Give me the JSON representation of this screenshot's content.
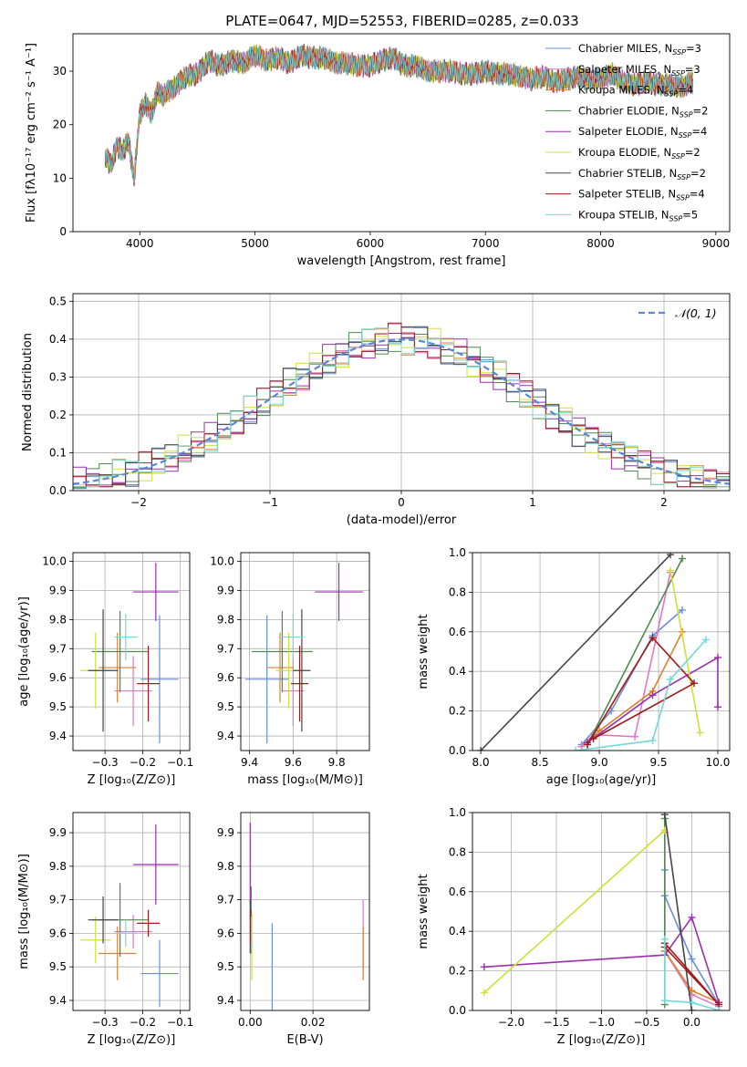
{
  "figure_title": "PLATE=0647, MJD=52553, FIBERID=0285, z=0.033",
  "colors": {
    "Chabrier MILES": "#6b8ed6",
    "Salpeter MILES": "#e377c2",
    "Kroupa MILES": "#e0802c",
    "Chabrier ELODIE": "#4f8a4f",
    "Salpeter ELODIE": "#9a2fb0",
    "Kroupa ELODIE": "#cfe03a",
    "Chabrier STELIB": "#454545",
    "Salpeter STELIB": "#a01a1a",
    "Kroupa STELIB": "#72d8d8"
  },
  "chart_data": [
    {
      "id": "spectrum",
      "type": "line",
      "xlabel": "wavelength [Angstrom, rest frame]",
      "ylabel": "Flux [fλ10⁻¹⁷ erg cm⁻² s⁻¹ A⁻¹]",
      "xlim": [
        3420,
        9120
      ],
      "ylim": [
        0,
        37
      ],
      "xticks": [
        4000,
        5000,
        6000,
        7000,
        8000,
        9000
      ],
      "yticks": [
        0,
        10,
        20,
        30
      ],
      "legend_position": "top-right",
      "legend": [
        {
          "model": "Chabrier MILES",
          "prefix": "Chabrier MILES, N",
          "sub": "SSP",
          "suffix": "=3"
        },
        {
          "model": "Salpeter MILES",
          "prefix": "Salpeter MILES, N",
          "sub": "SSP",
          "suffix": "=3"
        },
        {
          "model": "Kroupa MILES",
          "prefix": "Kroupa MILES, N",
          "sub": "SSP",
          "suffix": "=4"
        },
        {
          "model": "Chabrier ELODIE",
          "prefix": "Chabrier ELODIE, N",
          "sub": "SSP",
          "suffix": "=2"
        },
        {
          "model": "Salpeter ELODIE",
          "prefix": "Salpeter ELODIE, N",
          "sub": "SSP",
          "suffix": "=4"
        },
        {
          "model": "Kroupa ELODIE",
          "prefix": "Kroupa ELODIE, N",
          "sub": "SSP",
          "suffix": "=2"
        },
        {
          "model": "Chabrier STELIB",
          "prefix": "Chabrier STELIB, N",
          "sub": "SSP",
          "suffix": "=2"
        },
        {
          "model": "Salpeter STELIB",
          "prefix": "Salpeter STELIB, N",
          "sub": "SSP",
          "suffix": "=4"
        },
        {
          "model": "Kroupa STELIB",
          "prefix": "Kroupa STELIB, N",
          "sub": "SSP",
          "suffix": "=5"
        }
      ],
      "wavelength": [
        3700,
        3750,
        3800,
        3850,
        3900,
        3950,
        4000,
        4050,
        4100,
        4150,
        4200,
        4300,
        4400,
        4500,
        4600,
        4700,
        4800,
        4900,
        5000,
        5100,
        5200,
        5300,
        5400,
        5500,
        5600,
        5700,
        5800,
        5900,
        6000,
        6100,
        6200,
        6300,
        6400,
        6500,
        6600,
        6700,
        6800,
        6900,
        7000,
        7100,
        7200,
        7300,
        7400,
        7500,
        7600,
        7700,
        7800,
        7900,
        8000,
        8100,
        8200,
        8300,
        8400,
        8500,
        8600,
        8700,
        8800
      ],
      "flux": [
        14,
        12.5,
        16,
        15,
        17,
        10,
        22,
        24,
        22,
        26,
        25.5,
        27,
        29,
        29.5,
        32,
        31,
        32,
        31.5,
        33,
        32,
        32.5,
        31.5,
        33,
        32.5,
        32.5,
        31.5,
        31.5,
        31,
        31,
        32,
        32.5,
        31,
        31,
        30,
        30,
        30,
        29.5,
        29.5,
        30,
        29.5,
        29.5,
        29,
        28.5,
        29,
        28,
        28.5,
        29,
        28.5,
        28.5,
        29.5,
        28,
        27.5,
        28,
        27.5,
        27.5,
        27,
        28
      ]
    },
    {
      "id": "residual-histogram",
      "type": "step",
      "xlabel": "(data-model)/error",
      "ylabel": "Normed distribution",
      "xlim": [
        -2.5,
        2.5
      ],
      "ylim": [
        0,
        0.52
      ],
      "xticks": [
        -2,
        -1,
        0,
        1,
        2
      ],
      "yticks": [
        0.0,
        0.1,
        0.2,
        0.3,
        0.4,
        0.5
      ],
      "grid": true,
      "reference_curve": {
        "label": "𝒩(0, 1)",
        "mean": 0,
        "sigma": 1
      }
    },
    {
      "id": "age-vs-Z",
      "type": "errorbar",
      "xlabel": "Z [log₁₀(Z/Z⊙)]",
      "ylabel": "age  [log₁₀(age/yr)]",
      "xlim": [
        -0.385,
        -0.075
      ],
      "ylim": [
        9.35,
        10.03
      ],
      "xticks": [
        -0.3,
        -0.2,
        -0.1
      ],
      "yticks": [
        9.4,
        9.5,
        9.6,
        9.7,
        9.8,
        9.9,
        10.0
      ],
      "grid": true,
      "points": [
        {
          "model": "Chabrier MILES",
          "x": -0.155,
          "xerr": 0.05,
          "y": 9.595,
          "yerr": 0.22
        },
        {
          "model": "Salpeter MILES",
          "x": -0.225,
          "xerr": 0.05,
          "y": 9.555,
          "yerr": 0.12
        },
        {
          "model": "Kroupa MILES",
          "x": -0.267,
          "xerr": 0.05,
          "y": 9.635,
          "yerr": 0.12
        },
        {
          "model": "Chabrier ELODIE",
          "x": -0.26,
          "xerr": 0.075,
          "y": 9.69,
          "yerr": 0.14
        },
        {
          "model": "Salpeter ELODIE",
          "x": -0.165,
          "xerr": 0.06,
          "y": 9.895,
          "yerr": 0.1
        },
        {
          "model": "Kroupa ELODIE",
          "x": -0.325,
          "xerr": 0.04,
          "y": 9.625,
          "yerr": 0.13
        },
        {
          "model": "Chabrier STELIB",
          "x": -0.305,
          "xerr": 0.04,
          "y": 9.625,
          "yerr": 0.21
        },
        {
          "model": "Salpeter STELIB",
          "x": -0.185,
          "xerr": 0.03,
          "y": 9.58,
          "yerr": 0.13
        },
        {
          "model": "Kroupa STELIB",
          "x": -0.245,
          "xerr": 0.03,
          "y": 9.74,
          "yerr": 0.08
        }
      ]
    },
    {
      "id": "age-vs-mass",
      "type": "errorbar",
      "xlabel": "mass [log₁₀(M/M⊙)]",
      "ylabel": "",
      "xlim": [
        9.36,
        9.95
      ],
      "ylim": [
        9.35,
        10.03
      ],
      "xticks": [
        9.4,
        9.6,
        9.8
      ],
      "yticks": [
        9.4,
        9.5,
        9.6,
        9.7,
        9.8,
        9.9,
        10.0
      ],
      "grid": true,
      "points": [
        {
          "model": "Chabrier MILES",
          "x": 9.48,
          "xerr": 0.1,
          "y": 9.595,
          "yerr": 0.22
        },
        {
          "model": "Salpeter MILES",
          "x": 9.6,
          "xerr": 0.05,
          "y": 9.555,
          "yerr": 0.12
        },
        {
          "model": "Kroupa MILES",
          "x": 9.54,
          "xerr": 0.06,
          "y": 9.635,
          "yerr": 0.12
        },
        {
          "model": "Chabrier ELODIE",
          "x": 9.55,
          "xerr": 0.14,
          "y": 9.69,
          "yerr": 0.14
        },
        {
          "model": "Salpeter ELODIE",
          "x": 9.81,
          "xerr": 0.11,
          "y": 9.895,
          "yerr": 0.1
        },
        {
          "model": "Kroupa ELODIE",
          "x": 9.58,
          "xerr": 0.06,
          "y": 9.625,
          "yerr": 0.13
        },
        {
          "model": "Chabrier STELIB",
          "x": 9.64,
          "xerr": 0.04,
          "y": 9.625,
          "yerr": 0.21
        },
        {
          "model": "Salpeter STELIB",
          "x": 9.63,
          "xerr": 0.04,
          "y": 9.58,
          "yerr": 0.13
        },
        {
          "model": "Kroupa STELIB",
          "x": 9.6,
          "xerr": 0.05,
          "y": 9.74,
          "yerr": 0.08
        }
      ]
    },
    {
      "id": "mass-vs-Z",
      "type": "errorbar",
      "xlabel": "Z [log₁₀(Z/Z⊙)]",
      "ylabel": "mass [log₁₀(M/M⊙)]",
      "xlim": [
        -0.385,
        -0.075
      ],
      "ylim": [
        9.37,
        9.96
      ],
      "xticks": [
        -0.3,
        -0.2,
        -0.1
      ],
      "yticks": [
        9.4,
        9.5,
        9.6,
        9.7,
        9.8,
        9.9
      ],
      "grid": true,
      "points": [
        {
          "model": "Chabrier MILES",
          "x": -0.155,
          "xerr": 0.05,
          "y": 9.48,
          "yerr": 0.1
        },
        {
          "model": "Salpeter MILES",
          "x": -0.225,
          "xerr": 0.05,
          "y": 9.605,
          "yerr": 0.05
        },
        {
          "model": "Kroupa MILES",
          "x": -0.267,
          "xerr": 0.05,
          "y": 9.54,
          "yerr": 0.08
        },
        {
          "model": "Chabrier ELODIE",
          "x": -0.26,
          "xerr": 0.075,
          "y": 9.64,
          "yerr": 0.11
        },
        {
          "model": "Salpeter ELODIE",
          "x": -0.165,
          "xerr": 0.06,
          "y": 9.805,
          "yerr": 0.12
        },
        {
          "model": "Kroupa ELODIE",
          "x": -0.325,
          "xerr": 0.04,
          "y": 9.58,
          "yerr": 0.07
        },
        {
          "model": "Chabrier STELIB",
          "x": -0.305,
          "xerr": 0.04,
          "y": 9.64,
          "yerr": 0.07
        },
        {
          "model": "Salpeter STELIB",
          "x": -0.185,
          "xerr": 0.03,
          "y": 9.63,
          "yerr": 0.04
        },
        {
          "model": "Kroupa STELIB",
          "x": -0.245,
          "xerr": 0.03,
          "y": 9.6,
          "yerr": 0.04
        }
      ]
    },
    {
      "id": "mass-vs-EBV",
      "type": "errorbar",
      "xlabel": "E(B-V)",
      "ylabel": "",
      "xlim": [
        -0.003,
        0.038
      ],
      "ylim": [
        9.37,
        9.96
      ],
      "xticks": [
        0.0,
        0.02
      ],
      "yticks": [
        9.4,
        9.5,
        9.6,
        9.7,
        9.8,
        9.9
      ],
      "grid": true,
      "points": [
        {
          "model": "Chabrier MILES",
          "x": 0.007,
          "xerr": 0,
          "y": 9.48,
          "yerr": 0.15
        },
        {
          "model": "Salpeter MILES",
          "x": 0.036,
          "xerr": 0,
          "y": 9.6,
          "yerr": 0.1
        },
        {
          "model": "Kroupa MILES",
          "x": 0.036,
          "xerr": 0,
          "y": 9.54,
          "yerr": 0.08
        },
        {
          "model": "Chabrier ELODIE",
          "x": 0.0003,
          "xerr": 0,
          "y": 9.64,
          "yerr": 0.1
        },
        {
          "model": "Salpeter ELODIE",
          "x": 0.0,
          "xerr": 0,
          "y": 9.81,
          "yerr": 0.12
        },
        {
          "model": "Kroupa ELODIE",
          "x": 0.0005,
          "xerr": 0,
          "y": 9.56,
          "yerr": 0.1
        },
        {
          "model": "Chabrier STELIB",
          "x": 0.0,
          "xerr": 0,
          "y": 9.62,
          "yerr": 0.08
        },
        {
          "model": "Salpeter STELIB",
          "x": 0.0002,
          "xerr": 0,
          "y": 9.62,
          "yerr": 0.05
        },
        {
          "model": "Kroupa STELIB",
          "x": 0.0004,
          "xerr": 0,
          "y": 9.6,
          "yerr": 0.05
        }
      ]
    },
    {
      "id": "weight-vs-age",
      "type": "line",
      "xlabel": "age  [log₁₀(age/yr)]",
      "ylabel": "mass weight",
      "xlim": [
        7.93,
        10.1
      ],
      "ylim": [
        0,
        1
      ],
      "xticks": [
        8.0,
        8.5,
        9.0,
        9.5,
        10.0
      ],
      "yticks": [
        0.0,
        0.2,
        0.4,
        0.6,
        0.8,
        1.0
      ],
      "grid": true,
      "series": [
        {
          "model": "Chabrier MILES",
          "x": [
            8.85,
            9.1,
            9.45,
            9.7
          ],
          "y": [
            0.03,
            0.2,
            0.58,
            0.71
          ]
        },
        {
          "model": "Salpeter MILES",
          "x": [
            8.85,
            8.95,
            9.3,
            9.6
          ],
          "y": [
            0.02,
            0.08,
            0.07,
            0.9
          ]
        },
        {
          "model": "Kroupa MILES",
          "x": [
            8.9,
            9.0,
            9.45,
            9.7
          ],
          "y": [
            0.04,
            0.1,
            0.3,
            0.6
          ]
        },
        {
          "model": "Chabrier ELODIE",
          "x": [
            8.9,
            9.7
          ],
          "y": [
            0.03,
            0.97
          ]
        },
        {
          "model": "Salpeter ELODIE",
          "x": [
            8.9,
            9.45,
            10.0,
            10.0
          ],
          "y": [
            0.04,
            0.28,
            0.47,
            0.22
          ]
        },
        {
          "model": "Kroupa ELODIE",
          "x": [
            9.6,
            9.85
          ],
          "y": [
            0.91,
            0.09
          ]
        },
        {
          "model": "Chabrier STELIB",
          "x": [
            8.0,
            9.6
          ],
          "y": [
            0.0,
            0.99
          ]
        },
        {
          "model": "Salpeter STELIB",
          "x": [
            8.9,
            9.45,
            9.8,
            8.95
          ],
          "y": [
            0.03,
            0.57,
            0.34,
            0.06
          ]
        },
        {
          "model": "Kroupa STELIB",
          "x": [
            8.8,
            9.45,
            9.6,
            9.9
          ],
          "y": [
            0.0,
            0.05,
            0.36,
            0.56
          ]
        }
      ]
    },
    {
      "id": "weight-vs-Z",
      "type": "line",
      "xlabel": "Z [log₁₀(Z/Z⊙)]",
      "ylabel": "mass weight",
      "xlim": [
        -2.43,
        0.42
      ],
      "ylim": [
        0,
        1
      ],
      "xticks": [
        -2.0,
        -1.5,
        -1.0,
        -0.5,
        0.0
      ],
      "xticklabels": [
        "−2.0",
        "−1.5",
        "−1.0",
        "−0.5",
        "0.0"
      ],
      "yticks": [
        0.0,
        0.2,
        0.4,
        0.6,
        0.8,
        1.0
      ],
      "grid": true,
      "series": [
        {
          "model": "Chabrier MILES",
          "x": [
            -0.3,
            -0.3,
            0.0,
            0.3
          ],
          "y": [
            0.71,
            0.58,
            0.26,
            0.03
          ]
        },
        {
          "model": "Salpeter MILES",
          "x": [
            -0.3,
            -0.3,
            0.0,
            0.3
          ],
          "y": [
            0.9,
            0.3,
            0.08,
            0.02
          ]
        },
        {
          "model": "Kroupa MILES",
          "x": [
            -0.3,
            0.0,
            0.3
          ],
          "y": [
            0.3,
            0.1,
            0.04
          ]
        },
        {
          "model": "Chabrier ELODIE",
          "x": [
            -0.3,
            -0.3
          ],
          "y": [
            0.97,
            0.03
          ]
        },
        {
          "model": "Salpeter ELODIE",
          "x": [
            -2.3,
            -0.3,
            0.0,
            0.3
          ],
          "y": [
            0.22,
            0.28,
            0.47,
            0.04
          ]
        },
        {
          "model": "Kroupa ELODIE",
          "x": [
            -2.3,
            -0.3
          ],
          "y": [
            0.09,
            0.91
          ]
        },
        {
          "model": "Chabrier STELIB",
          "x": [
            -0.3,
            0.0
          ],
          "y": [
            0.99,
            0.0
          ]
        },
        {
          "model": "Salpeter STELIB",
          "x": [
            -0.3,
            0.3,
            -0.3
          ],
          "y": [
            0.34,
            0.03,
            0.32
          ]
        },
        {
          "model": "Kroupa STELIB",
          "x": [
            -0.3,
            -0.3,
            0.0,
            0.3
          ],
          "y": [
            0.36,
            0.05,
            0.04,
            0.0
          ]
        }
      ]
    }
  ]
}
